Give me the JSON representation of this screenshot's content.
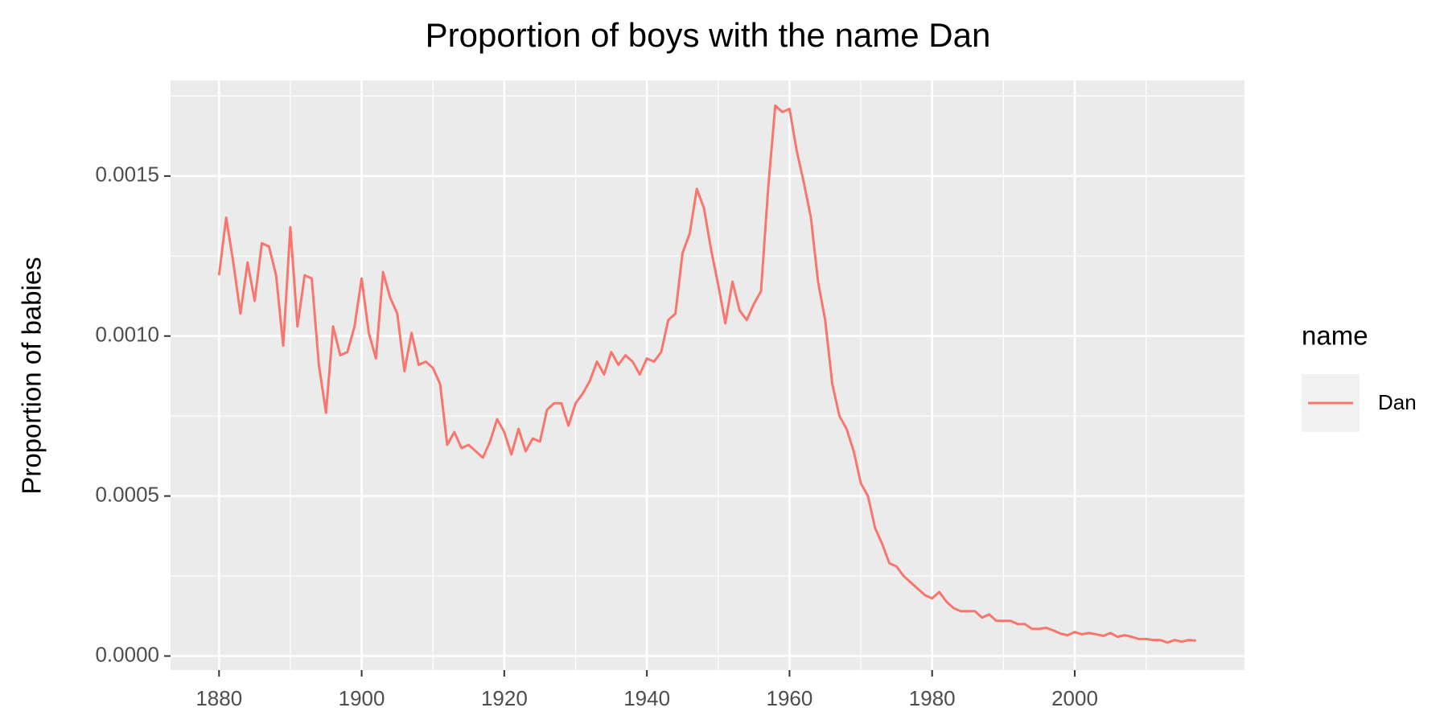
{
  "chart_data": {
    "type": "line",
    "title": "Proportion of boys with the name Dan",
    "y_label": "Proportion of babies",
    "legend_title": "name",
    "legend": "right",
    "grid": true,
    "x": [
      1880,
      1881,
      1882,
      1883,
      1884,
      1885,
      1886,
      1887,
      1888,
      1889,
      1890,
      1891,
      1892,
      1893,
      1894,
      1895,
      1896,
      1897,
      1898,
      1899,
      1900,
      1901,
      1902,
      1903,
      1904,
      1905,
      1906,
      1907,
      1908,
      1909,
      1910,
      1911,
      1912,
      1913,
      1914,
      1915,
      1916,
      1917,
      1918,
      1919,
      1920,
      1921,
      1922,
      1923,
      1924,
      1925,
      1926,
      1927,
      1928,
      1929,
      1930,
      1931,
      1932,
      1933,
      1934,
      1935,
      1936,
      1937,
      1938,
      1939,
      1940,
      1941,
      1942,
      1943,
      1944,
      1945,
      1946,
      1947,
      1948,
      1949,
      1950,
      1951,
      1952,
      1953,
      1954,
      1955,
      1956,
      1957,
      1958,
      1959,
      1960,
      1961,
      1962,
      1963,
      1964,
      1965,
      1966,
      1967,
      1968,
      1969,
      1970,
      1971,
      1972,
      1973,
      1974,
      1975,
      1976,
      1977,
      1978,
      1979,
      1980,
      1981,
      1982,
      1983,
      1984,
      1985,
      1986,
      1987,
      1988,
      1989,
      1990,
      1991,
      1992,
      1993,
      1994,
      1995,
      1996,
      1997,
      1998,
      1999,
      2000,
      2001,
      2002,
      2003,
      2004,
      2005,
      2006,
      2007,
      2008,
      2009,
      2010,
      2011,
      2012,
      2013,
      2014,
      2015,
      2016,
      2017
    ],
    "series": [
      {
        "name": "Dan",
        "color": "#f8766d",
        "values": [
          0.00119,
          0.00137,
          0.00123,
          0.00107,
          0.00123,
          0.00111,
          0.00129,
          0.00128,
          0.00119,
          0.00097,
          0.00134,
          0.00103,
          0.00119,
          0.00118,
          0.00091,
          0.00076,
          0.00103,
          0.00094,
          0.00095,
          0.00103,
          0.00118,
          0.00101,
          0.00093,
          0.0012,
          0.00112,
          0.00107,
          0.00089,
          0.00101,
          0.00091,
          0.00092,
          0.0009,
          0.00085,
          0.00066,
          0.0007,
          0.00065,
          0.00066,
          0.00064,
          0.00062,
          0.00067,
          0.00074,
          0.0007,
          0.00063,
          0.00071,
          0.00064,
          0.00068,
          0.00067,
          0.00077,
          0.00079,
          0.00079,
          0.00072,
          0.00079,
          0.00082,
          0.00086,
          0.00092,
          0.00088,
          0.00095,
          0.00091,
          0.00094,
          0.00092,
          0.00088,
          0.00093,
          0.00092,
          0.00095,
          0.00105,
          0.00107,
          0.00126,
          0.00132,
          0.00146,
          0.0014,
          0.00127,
          0.00116,
          0.00104,
          0.00117,
          0.00108,
          0.00105,
          0.0011,
          0.00114,
          0.00146,
          0.00172,
          0.0017,
          0.00171,
          0.00158,
          0.00148,
          0.00137,
          0.00117,
          0.00105,
          0.00085,
          0.00075,
          0.00071,
          0.00064,
          0.00054,
          0.0005,
          0.0004,
          0.00035,
          0.00029,
          0.00028,
          0.00025,
          0.00023,
          0.00021,
          0.00019,
          0.00018,
          0.0002,
          0.00017,
          0.00015,
          0.00014,
          0.00014,
          0.00014,
          0.00012,
          0.00013,
          0.00011,
          0.00011,
          0.00011,
          0.0001,
          0.0001,
          8.5e-05,
          8.5e-05,
          8.8e-05,
          8e-05,
          7e-05,
          6.5e-05,
          7.5e-05,
          6.8e-05,
          7.2e-05,
          6.8e-05,
          6.3e-05,
          7.2e-05,
          6e-05,
          6.5e-05,
          6e-05,
          5.3e-05,
          5.3e-05,
          5e-05,
          5e-05,
          4.2e-05,
          5e-05,
          4.5e-05,
          5e-05,
          4.8e-05
        ]
      }
    ],
    "xlim": [
      1873.2,
      2023.8
    ],
    "xticks": [
      1880,
      1900,
      1920,
      1940,
      1960,
      1980,
      2000
    ],
    "ylim": [
      -4.4e-05,
      0.0017988
    ],
    "yticks": [
      {
        "value": 0,
        "label": "0.0000"
      },
      {
        "value": 0.0005,
        "label": "0.0005"
      },
      {
        "value": 0.001,
        "label": "0.0010"
      },
      {
        "value": 0.0015,
        "label": "0.0015"
      }
    ]
  }
}
